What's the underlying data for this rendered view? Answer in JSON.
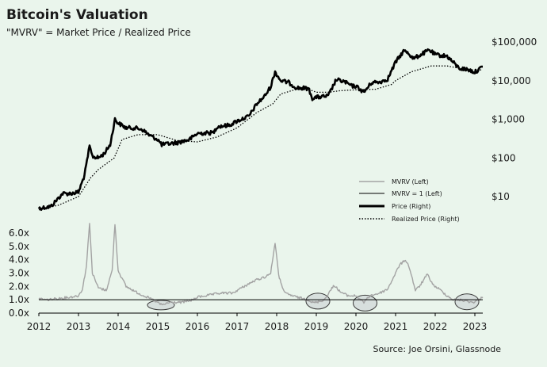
{
  "title": "Bitcoin's Valuation",
  "subtitle": "\"MVRV\" = Market Price / Realized Price",
  "source": "Source: Joe Orsini, Glassnode",
  "colors": {
    "background": "#eaf5ec",
    "mvrv": "#a3a3a3",
    "line": "#000000",
    "ellipse_fill": "#c9d1d3",
    "ellipse_stroke": "#3a3a3a"
  },
  "chart_data": [
    {
      "type": "line",
      "panel": "top",
      "scale": "log",
      "ylim": [
        5,
        150000
      ],
      "y_ticks": [
        "$10",
        "$100",
        "$1,000",
        "$10,000",
        "$100,000"
      ],
      "y_tick_values": [
        10,
        100,
        1000,
        10000,
        100000
      ],
      "legend": [
        "MVRV (Left)",
        "MVRV = 1 (Left)",
        "Price (Right)",
        "Realized Price (Right)"
      ],
      "legend_position": "bottom-right",
      "series": [
        {
          "name": "Price (Right)",
          "x": [
            2012.0,
            2012.3,
            2012.6,
            2012.8,
            2013.0,
            2013.15,
            2013.28,
            2013.35,
            2013.5,
            2013.65,
            2013.8,
            2013.92,
            2014.0,
            2014.2,
            2014.4,
            2014.6,
            2014.8,
            2015.0,
            2015.1,
            2015.5,
            2015.8,
            2016.0,
            2016.4,
            2016.5,
            2016.8,
            2017.0,
            2017.3,
            2017.5,
            2017.7,
            2017.85,
            2017.96,
            2018.1,
            2018.3,
            2018.5,
            2018.8,
            2018.9,
            2019.0,
            2019.3,
            2019.5,
            2019.7,
            2019.9,
            2020.0,
            2020.2,
            2020.4,
            2020.6,
            2020.8,
            2021.0,
            2021.2,
            2021.3,
            2021.45,
            2021.6,
            2021.85,
            2022.0,
            2022.3,
            2022.45,
            2022.6,
            2022.85,
            2023.0,
            2023.2
          ],
          "values": [
            5,
            5.5,
            12,
            12,
            13,
            35,
            200,
            110,
            100,
            130,
            220,
            1000,
            800,
            600,
            600,
            550,
            380,
            300,
            220,
            250,
            300,
            430,
            450,
            650,
            700,
            900,
            1200,
            2500,
            4000,
            7000,
            17000,
            10000,
            9000,
            6500,
            6300,
            3500,
            3700,
            4000,
            10500,
            9500,
            7200,
            7200,
            5000,
            9000,
            9200,
            11000,
            30000,
            58000,
            55000,
            37000,
            45000,
            62000,
            47000,
            43000,
            30000,
            21000,
            19000,
            16500,
            23000
          ]
        },
        {
          "name": "Realized Price (Right)",
          "x": [
            2012.0,
            2012.5,
            2013.0,
            2013.3,
            2013.5,
            2013.9,
            2014.1,
            2014.5,
            2015.0,
            2015.5,
            2016.0,
            2016.5,
            2017.0,
            2017.5,
            2017.9,
            2018.1,
            2018.5,
            2018.9,
            2019.0,
            2019.3,
            2019.6,
            2020.0,
            2020.5,
            2020.9,
            2021.0,
            2021.4,
            2021.9,
            2022.3,
            2022.6,
            2022.9,
            2023.2
          ],
          "values": [
            4.5,
            6,
            10,
            30,
            50,
            100,
            300,
            400,
            400,
            280,
            260,
            350,
            600,
            1500,
            2500,
            4500,
            6000,
            5500,
            5000,
            5000,
            5500,
            5800,
            6000,
            8000,
            10000,
            17000,
            24000,
            24000,
            21000,
            19000,
            19000
          ]
        }
      ]
    },
    {
      "type": "line",
      "panel": "bottom",
      "ylim": [
        0,
        6.0
      ],
      "y_ticks": [
        "0.0x",
        "1.0x",
        "2.0x",
        "3.0x",
        "4.0x",
        "5.0x",
        "6.0x"
      ],
      "y_tick_values": [
        0,
        1,
        2,
        3,
        4,
        5,
        6
      ],
      "x_ticks": [
        "2012",
        "2013",
        "2014",
        "2015",
        "2016",
        "2017",
        "2018",
        "2019",
        "2020",
        "2021",
        "2022",
        "2023"
      ],
      "x_tick_values": [
        2012,
        2013,
        2014,
        2015,
        2016,
        2017,
        2018,
        2019,
        2020,
        2021,
        2022,
        2023
      ],
      "series": [
        {
          "name": "MVRV (Left)",
          "x": [
            2012.0,
            2012.2,
            2012.5,
            2012.8,
            2013.0,
            2013.1,
            2013.2,
            2013.28,
            2013.35,
            2013.5,
            2013.7,
            2013.85,
            2013.92,
            2014.0,
            2014.2,
            2014.5,
            2014.8,
            2015.0,
            2015.1,
            2015.3,
            2015.6,
            2015.9,
            2016.0,
            2016.4,
            2016.6,
            2016.9,
            2017.0,
            2017.3,
            2017.5,
            2017.7,
            2017.85,
            2017.96,
            2018.05,
            2018.2,
            2018.5,
            2018.8,
            2018.9,
            2019.0,
            2019.2,
            2019.45,
            2019.6,
            2019.8,
            2020.0,
            2020.2,
            2020.35,
            2020.6,
            2020.8,
            2021.0,
            2021.1,
            2021.25,
            2021.35,
            2021.5,
            2021.6,
            2021.8,
            2021.95,
            2022.1,
            2022.3,
            2022.45,
            2022.6,
            2022.8,
            2022.95,
            2023.1,
            2023.2
          ],
          "values": [
            1.1,
            1.0,
            1.1,
            1.2,
            1.3,
            1.8,
            3.5,
            6.8,
            3.0,
            1.9,
            1.7,
            3.2,
            6.7,
            3.2,
            2.0,
            1.5,
            1.1,
            0.8,
            0.6,
            0.8,
            0.8,
            1.0,
            1.2,
            1.4,
            1.5,
            1.5,
            1.7,
            2.2,
            2.5,
            2.7,
            3.0,
            5.3,
            2.8,
            1.5,
            1.2,
            1.0,
            0.8,
            0.8,
            1.0,
            2.1,
            1.6,
            1.3,
            1.3,
            0.8,
            1.3,
            1.5,
            1.8,
            3.0,
            3.6,
            4.0,
            3.4,
            1.7,
            2.0,
            2.9,
            2.1,
            1.8,
            1.3,
            1.0,
            1.0,
            0.9,
            0.8,
            1.0,
            1.2
          ]
        },
        {
          "name": "MVRV = 1 (Left)",
          "x": [
            2012.0,
            2023.2
          ],
          "values": [
            1,
            1
          ]
        }
      ],
      "annotations": [
        {
          "type": "ellipse",
          "x": 2015.08,
          "y": 0.6
        },
        {
          "type": "ellipse",
          "x": 2019.04,
          "y": 0.9
        },
        {
          "type": "ellipse",
          "x": 2020.23,
          "y": 0.75
        },
        {
          "type": "ellipse",
          "x": 2022.8,
          "y": 0.85
        }
      ]
    }
  ]
}
